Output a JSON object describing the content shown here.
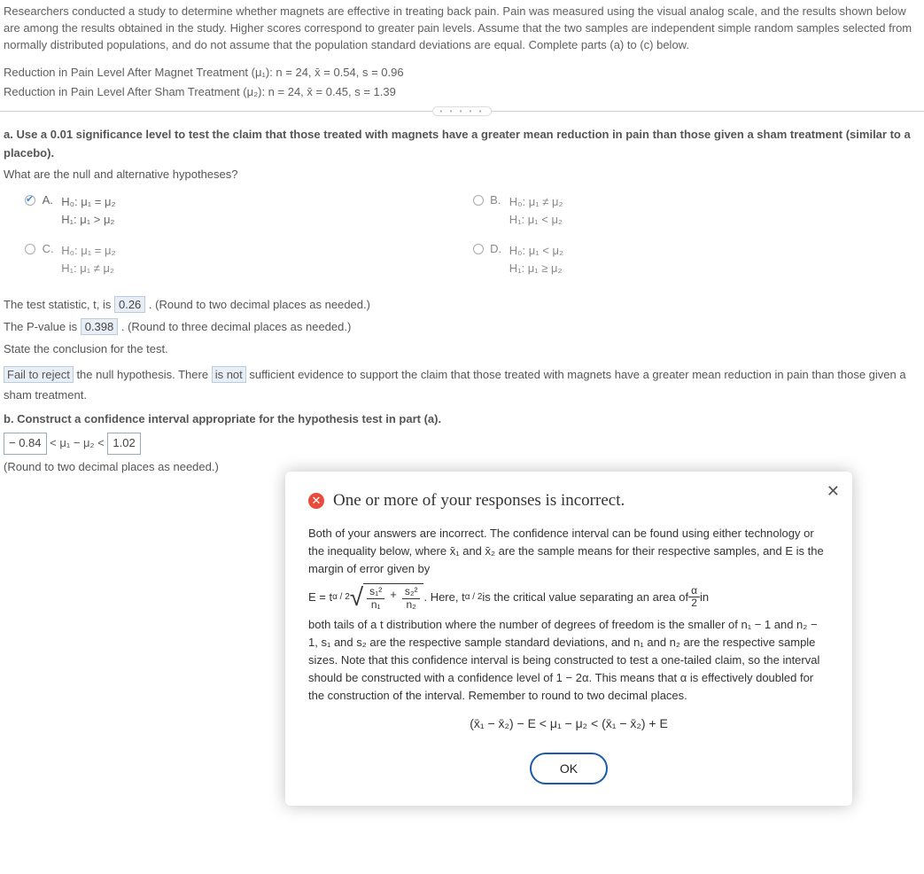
{
  "intro": "Researchers conducted a study to determine whether magnets are effective in treating back pain. Pain was measured using the visual analog scale, and the results shown below are among the results obtained in the study. Higher scores correspond to greater pain levels. Assume that the two samples are independent simple random samples selected from normally distributed populations, and do not assume that the population standard deviations are equal. Complete parts (a) to (c) below.",
  "stat1_label": "Reduction in Pain Level After Magnet Treatment (μ₁): n = 24, x̄ = 0.54, s = 0.96",
  "stat2_label": "Reduction in Pain Level After Sham Treatment (μ₂): n = 24, x̄ = 0.45, s = 1.39",
  "part_a_q": "a. Use a 0.01 significance level to test the claim that those treated with magnets have a greater mean reduction in pain than those given a sham treatment (similar to a placebo).",
  "hyp_q": "What are the null and alternative hypotheses?",
  "choice_a_letter": "A.",
  "choice_a_h0": "H₀: μ₁ = μ₂",
  "choice_a_h1": "H₁: μ₁ > μ₂",
  "choice_b_letter": "B.",
  "choice_b_h0": "H₀: μ₁ ≠ μ₂",
  "choice_b_h1": "H₁: μ₁ < μ₂",
  "choice_c_letter": "C.",
  "choice_c_h0": "H₀: μ₁ = μ₂",
  "choice_c_h1": "H₁: μ₁ ≠ μ₂",
  "choice_d_letter": "D.",
  "choice_d_h0": "H₀: μ₁ < μ₂",
  "choice_d_h1": "H₁: μ₁ ≥ μ₂",
  "tstat_pre": "The test statistic, t, is ",
  "tstat_val": "0.26",
  "tstat_post": " . (Round to two decimal places as needed.)",
  "pval_pre": "The P-value is ",
  "pval_val": "0.398",
  "pval_post": " . (Round to three decimal places as needed.)",
  "concl_q": "State the conclusion for the test.",
  "concl_dd1": "Fail to reject",
  "concl_mid1": " the null hypothesis. There ",
  "concl_dd2": "is not",
  "concl_mid2": " sufficient evidence to support the claim that those treated with magnets have a greater mean reduction in pain than those given a sham treatment.",
  "part_b_q": "b. Construct a confidence interval appropriate for the hypothesis test in part (a).",
  "ci_low": "− 0.84",
  "ci_mid": " < μ₁ − μ₂ < ",
  "ci_high": "1.02",
  "ci_round": "(Round to two decimal places as needed.)",
  "modal_title": "One or more of your responses is incorrect.",
  "modal_p1": "Both of your answers are incorrect. The confidence interval can be found using either technology or the inequality below, where x̄₁ and x̄₂ are the sample means for their respective samples, and E is the margin of error given by",
  "modal_E_eq": "E = t",
  "modal_alpha2": "α / 2",
  "modal_here": ". Here, t",
  "modal_here2": " is the critical value separating an area of ",
  "modal_frac_num": "α",
  "modal_frac_den": "2",
  "modal_in": " in",
  "modal_p2": "both tails of a t distribution where the number of degrees of freedom is the smaller of n₁ − 1 and n₂ − 1, s₁ and s₂ are the respective sample standard deviations, and n₁ and n₂ are the respective sample sizes. Note that this confidence interval is being constructed to test a one-tailed claim, so the interval should be constructed with a confidence level of 1 − 2α. This means that α is effectively doubled for the construction of the interval. Remember to round to two decimal places.",
  "modal_final": "(x̄₁ − x̄₂) − E < μ₁ − μ₂ < (x̄₁ − x̄₂) + E",
  "ok_label": "OK",
  "s1sq": "s₁²",
  "s2sq": "s₂²",
  "n1": "n₁",
  "n2": "n₂",
  "plus": "+"
}
